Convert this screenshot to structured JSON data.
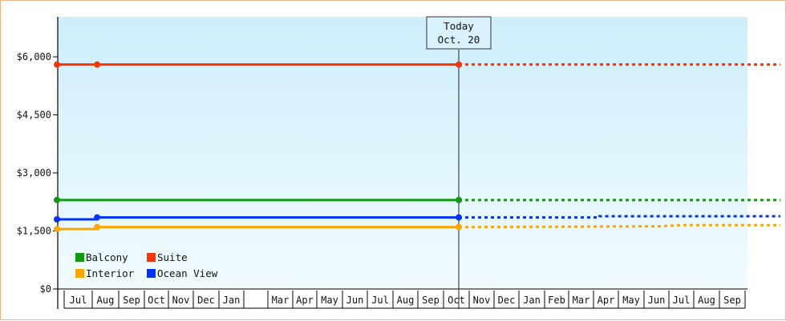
{
  "chart_data": {
    "type": "line",
    "today": {
      "label": "Today",
      "date": "Oct. 20"
    },
    "y_ticks": [
      "$0",
      "$1,500",
      "$3,000",
      "$4,500",
      "$6,000"
    ],
    "ylim": [
      0,
      7000
    ],
    "months": [
      "Jul",
      "Aug",
      "Sep",
      "Oct",
      "Nov",
      "Dec",
      "Jan",
      "",
      "Mar",
      "Apr",
      "May",
      "Jun",
      "Jul",
      "Aug",
      "Sep",
      "Oct",
      "Nov",
      "Dec",
      "Jan",
      "Feb",
      "Mar",
      "Apr",
      "May",
      "Jun",
      "Jul",
      "Aug",
      "Sep"
    ],
    "series": [
      {
        "name": "Suite",
        "color": "#ff3300",
        "actual": [
          [
            0,
            5800
          ],
          [
            2,
            5800
          ],
          [
            20,
            5800
          ]
        ],
        "projected": [
          [
            20,
            5800
          ],
          [
            36,
            5800
          ]
        ]
      },
      {
        "name": "Balcony",
        "color": "#119911",
        "actual": [
          [
            0,
            2300
          ],
          [
            20,
            2300
          ]
        ],
        "projected": [
          [
            20,
            2300
          ],
          [
            36,
            2300
          ]
        ]
      },
      {
        "name": "Ocean View",
        "color": "#0033ff",
        "actual": [
          [
            0,
            1800
          ],
          [
            2,
            1800
          ],
          [
            2,
            1850
          ],
          [
            20,
            1850
          ]
        ],
        "projected": [
          [
            20,
            1850
          ],
          [
            27,
            1850
          ],
          [
            27,
            1880
          ],
          [
            36,
            1880
          ]
        ]
      },
      {
        "name": "Interior",
        "color": "#ffa500",
        "actual": [
          [
            0,
            1550
          ],
          [
            2,
            1550
          ],
          [
            2,
            1600
          ],
          [
            20,
            1600
          ]
        ],
        "projected": [
          [
            20,
            1600
          ],
          [
            30,
            1620
          ],
          [
            31,
            1650
          ],
          [
            36,
            1650
          ]
        ]
      }
    ],
    "legend": [
      {
        "name": "Balcony",
        "color": "#119911"
      },
      {
        "name": "Suite",
        "color": "#ff3300"
      },
      {
        "name": "Interior",
        "color": "#ffa500"
      },
      {
        "name": "Ocean View",
        "color": "#0033ff"
      }
    ]
  }
}
